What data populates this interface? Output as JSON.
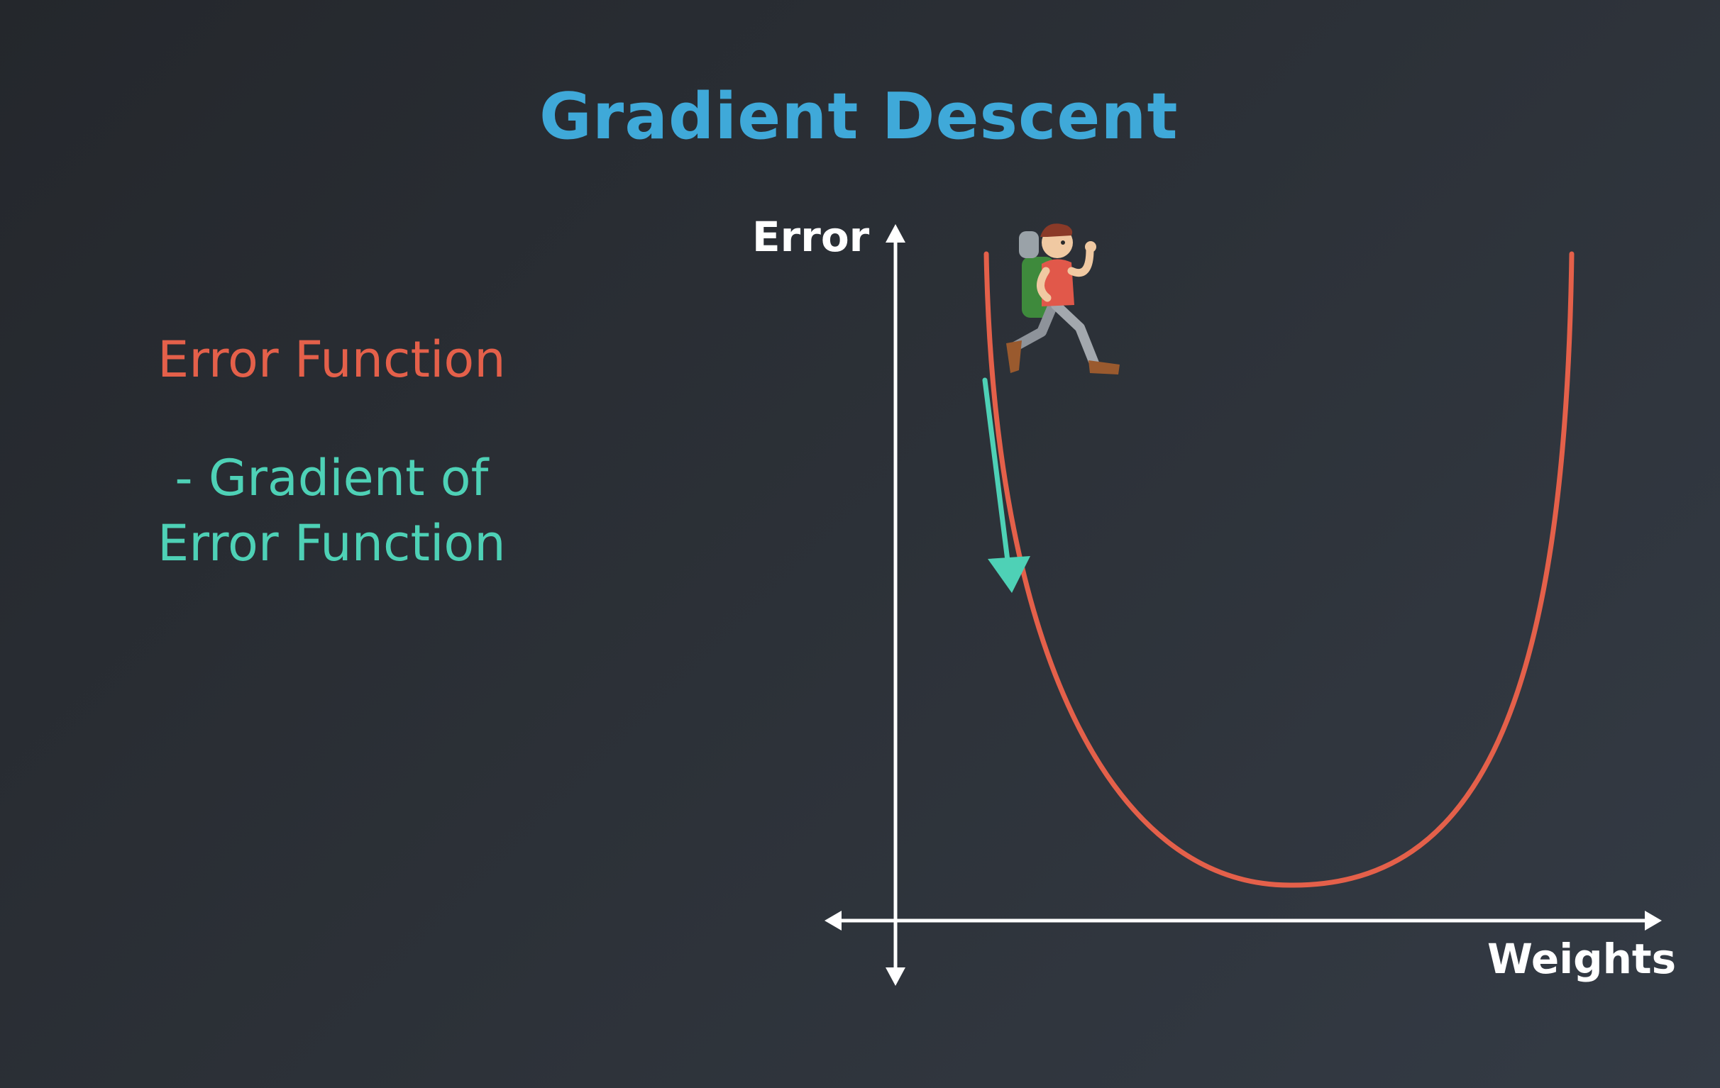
{
  "title": "Gradient Descent",
  "legend": {
    "error_function": "Error Function",
    "gradient_line1": "- Gradient of",
    "gradient_line2": "Error Function"
  },
  "axes": {
    "y_label": "Error",
    "x_label": "Weights"
  },
  "colors": {
    "title": "#3fa9d9",
    "error_curve": "#e4604a",
    "gradient_arrow": "#4ed1b6",
    "axes": "#ffffff",
    "background_dark": "#24272c",
    "background_light": "#343b45"
  },
  "icons": {
    "hiker": "hiker-icon"
  }
}
